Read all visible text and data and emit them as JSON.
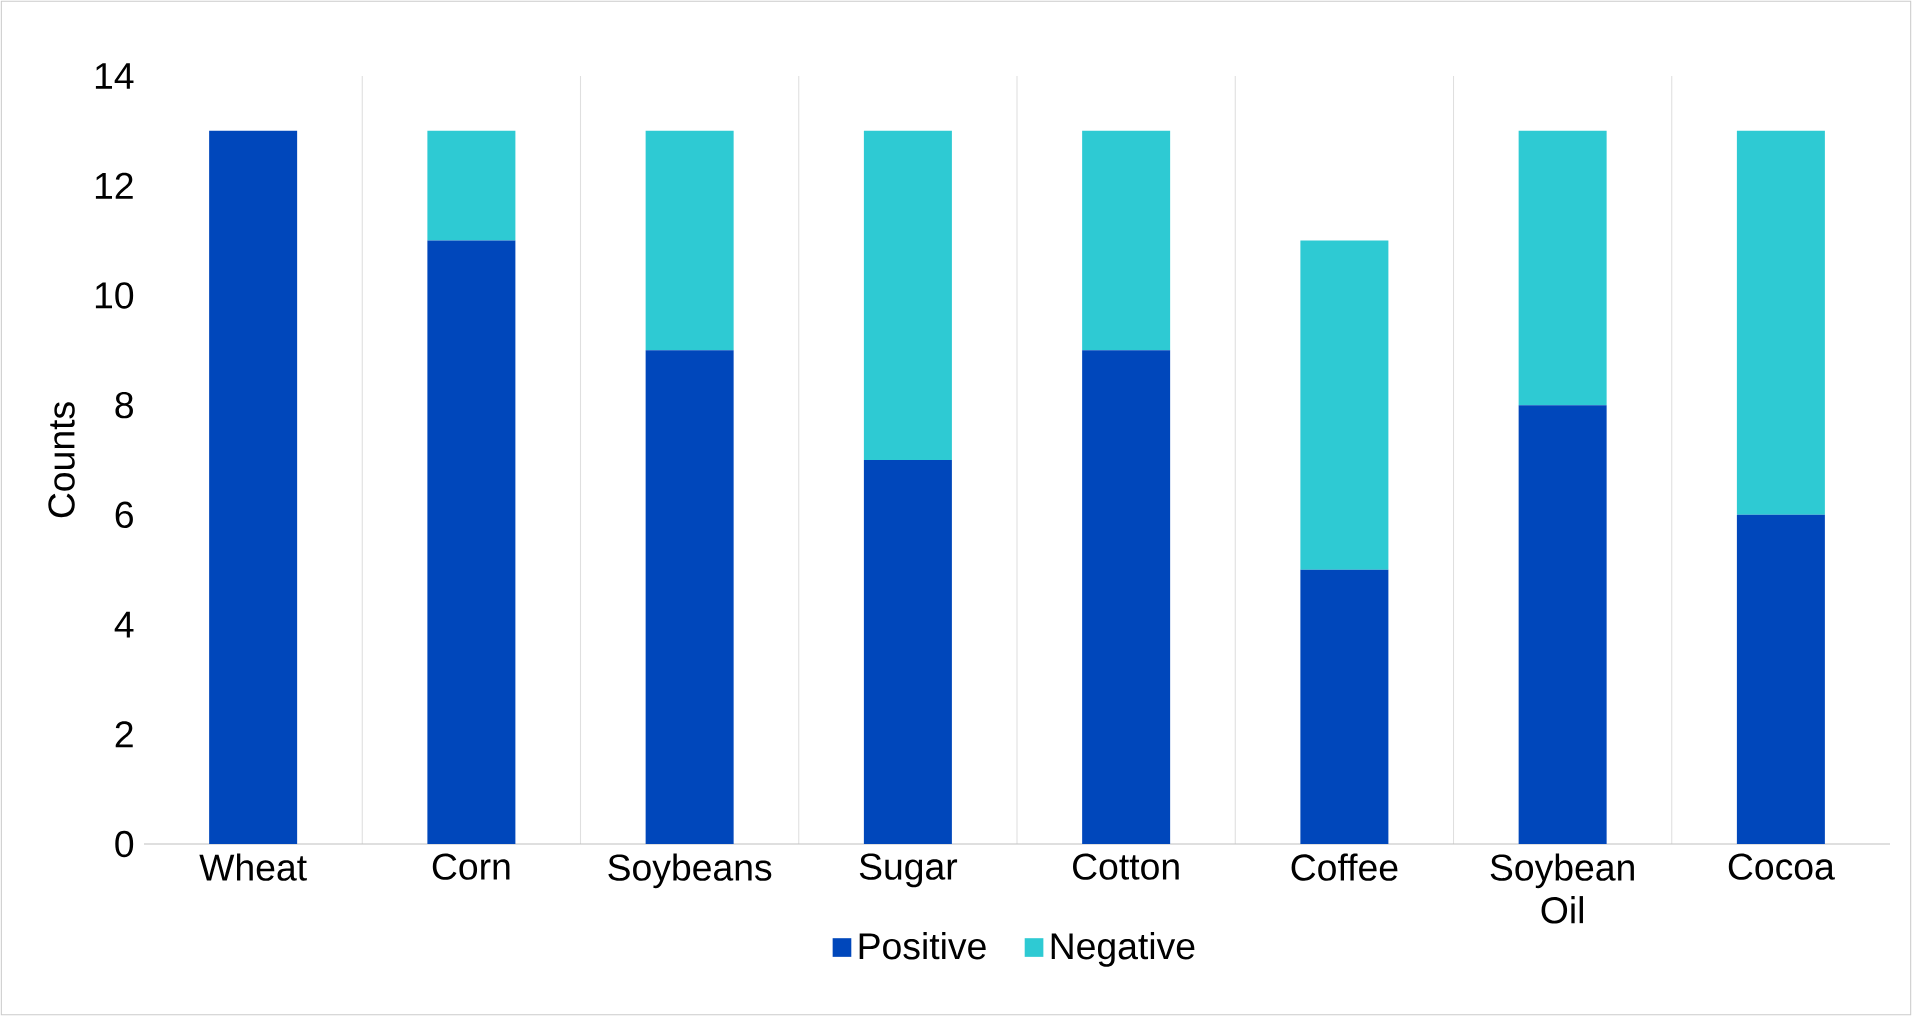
{
  "chart_data": {
    "type": "bar",
    "stacked": true,
    "ylabel": "Counts",
    "categories": [
      "Wheat",
      "Corn",
      "Soybeans",
      "Sugar",
      "Cotton",
      "Coffee",
      "Soybean Oil",
      "Cocoa"
    ],
    "series": [
      {
        "name": "Positive",
        "color": "#0047bb",
        "values": [
          13,
          11,
          9,
          7,
          9,
          5,
          8,
          6
        ]
      },
      {
        "name": "Negative",
        "color": "#2ecad3",
        "values": [
          0,
          2,
          4,
          6,
          4,
          6,
          5,
          7
        ]
      }
    ],
    "ylim": [
      0,
      14
    ],
    "yticks": [
      0,
      2,
      4,
      6,
      8,
      10,
      12,
      14
    ],
    "grid": "x",
    "legend": "bottom"
  }
}
